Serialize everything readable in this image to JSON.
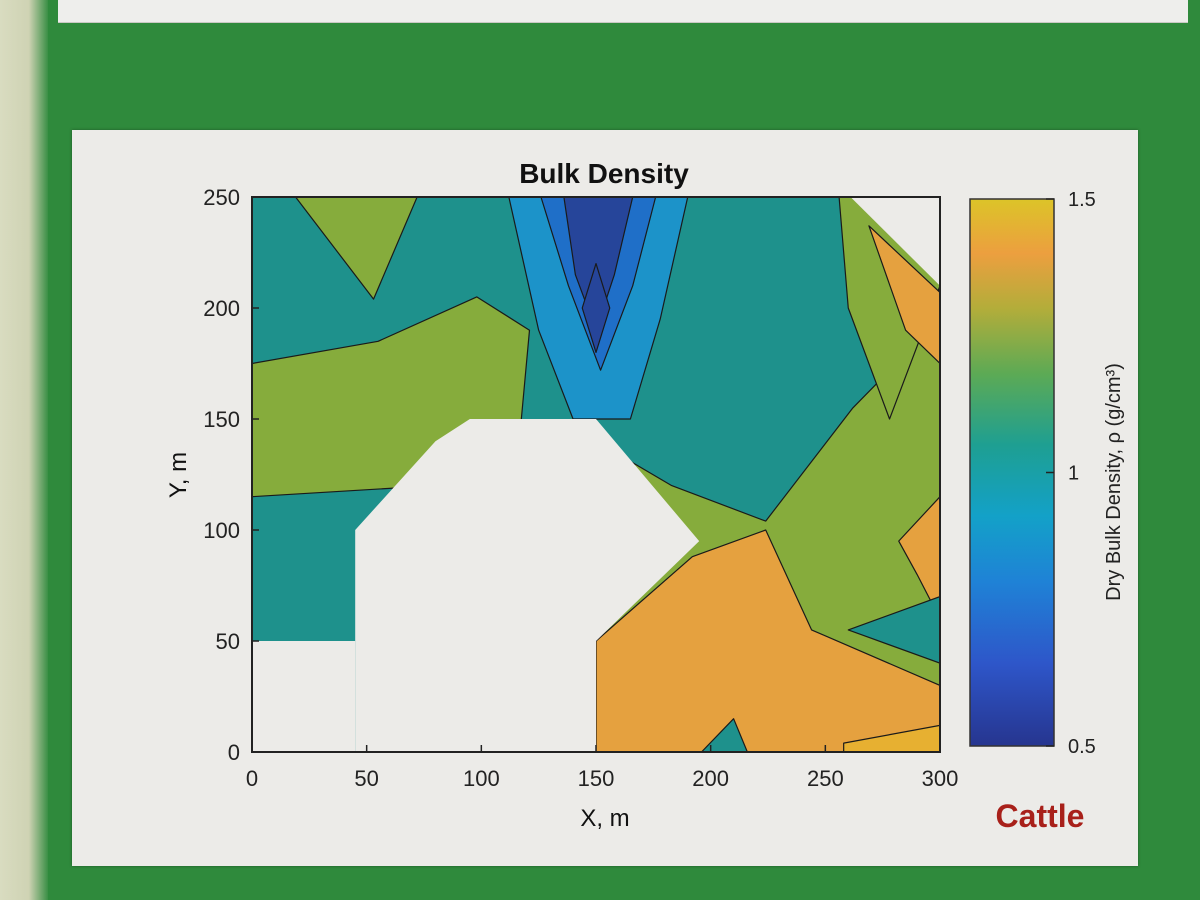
{
  "chart_data": {
    "type": "heatmap",
    "title": "Bulk Density",
    "xlabel": "X, m",
    "ylabel": "Y, m",
    "xlim": [
      0,
      300
    ],
    "ylim": [
      0,
      250
    ],
    "x_ticks": [
      0,
      50,
      100,
      150,
      200,
      250,
      300
    ],
    "y_ticks": [
      0,
      50,
      100,
      150,
      200,
      250
    ],
    "colorbar": {
      "label": "Dry Bulk Density, ρ (g/cm³)",
      "range": [
        0.5,
        1.5
      ],
      "ticks": [
        {
          "value": 0.5,
          "label": "0.5"
        },
        {
          "value": 1,
          "label": "1"
        },
        {
          "value": 1.5,
          "label": "1.5"
        }
      ]
    },
    "annotation": "Cattle",
    "levels": [
      {
        "value": 0.65,
        "color": "#26459a"
      },
      {
        "value": 0.8,
        "color": "#1f6fc8"
      },
      {
        "value": 0.9,
        "color": "#1c93c9"
      },
      {
        "value": 1.0,
        "color": "#1e918c"
      },
      {
        "value": 1.15,
        "color": "#86ac3c"
      },
      {
        "value": 1.3,
        "color": "#e5a13f"
      },
      {
        "value": 1.4,
        "color": "#e7b031"
      }
    ],
    "regions": [
      {
        "level": 1.0,
        "points": [
          [
            0,
            250
          ],
          [
            300,
            250
          ],
          [
            300,
            0
          ],
          [
            0,
            0
          ]
        ]
      },
      {
        "level": 1.15,
        "points": [
          [
            19,
            250
          ],
          [
            72,
            250
          ],
          [
            53,
            204
          ],
          [
            19,
            250
          ]
        ]
      },
      {
        "level": 1.15,
        "points": [
          [
            0,
            175
          ],
          [
            55,
            185
          ],
          [
            98,
            205
          ],
          [
            121,
            190
          ],
          [
            117,
            145
          ],
          [
            80,
            120
          ],
          [
            0,
            115
          ]
        ]
      },
      {
        "level": 1.15,
        "points": [
          [
            150,
            140
          ],
          [
            183,
            120
          ],
          [
            224,
            104
          ],
          [
            262,
            155
          ],
          [
            300,
            195
          ],
          [
            300,
            0
          ],
          [
            150,
            0
          ]
        ]
      },
      {
        "level": 1.15,
        "points": [
          [
            256,
            250
          ],
          [
            300,
            250
          ],
          [
            300,
            210
          ],
          [
            278,
            150
          ],
          [
            260,
            200
          ]
        ]
      },
      {
        "level": 1.3,
        "points": [
          [
            269,
            237
          ],
          [
            300,
            207
          ],
          [
            300,
            175
          ],
          [
            285,
            190
          ]
        ]
      },
      {
        "level": 1.3,
        "points": [
          [
            150,
            50
          ],
          [
            192,
            88
          ],
          [
            224,
            100
          ],
          [
            244,
            55
          ],
          [
            300,
            30
          ],
          [
            300,
            0
          ],
          [
            150,
            0
          ]
        ]
      },
      {
        "level": 1.3,
        "points": [
          [
            282,
            95
          ],
          [
            300,
            115
          ],
          [
            300,
            60
          ],
          [
            290,
            80
          ]
        ]
      },
      {
        "level": 1.0,
        "points": [
          [
            260,
            55
          ],
          [
            300,
            70
          ],
          [
            300,
            40
          ]
        ]
      },
      {
        "level": 1.0,
        "points": [
          [
            196,
            0
          ],
          [
            210,
            15
          ],
          [
            216,
            0
          ]
        ]
      },
      {
        "level": 1.4,
        "points": [
          [
            258,
            4
          ],
          [
            300,
            12
          ],
          [
            300,
            0
          ],
          [
            258,
            0
          ]
        ]
      },
      {
        "level": 0.9,
        "points": [
          [
            112,
            250
          ],
          [
            190,
            250
          ],
          [
            178,
            195
          ],
          [
            165,
            150
          ],
          [
            140,
            150
          ],
          [
            125,
            190
          ],
          [
            112,
            250
          ]
        ]
      },
      {
        "level": 0.8,
        "points": [
          [
            126,
            250
          ],
          [
            176,
            250
          ],
          [
            166,
            210
          ],
          [
            152,
            172
          ],
          [
            138,
            210
          ],
          [
            126,
            250
          ]
        ]
      },
      {
        "level": 0.65,
        "points": [
          [
            136,
            250
          ],
          [
            166,
            250
          ],
          [
            158,
            215
          ],
          [
            150,
            190
          ],
          [
            141,
            215
          ],
          [
            136,
            250
          ]
        ]
      },
      {
        "level": 0.65,
        "points": [
          [
            150,
            220
          ],
          [
            156,
            200
          ],
          [
            150,
            180
          ],
          [
            144,
            200
          ]
        ]
      }
    ],
    "masks": [
      {
        "points": [
          [
            45,
            95
          ],
          [
            45,
            100
          ],
          [
            80,
            140
          ],
          [
            95,
            150
          ],
          [
            150,
            150
          ],
          [
            195,
            95
          ],
          [
            150,
            50
          ],
          [
            150,
            0
          ],
          [
            45,
            0
          ]
        ]
      },
      {
        "points": [
          [
            0,
            50
          ],
          [
            45,
            50
          ],
          [
            45,
            0
          ],
          [
            0,
            0
          ]
        ]
      },
      {
        "points": [
          [
            261,
            250
          ],
          [
            300,
            250
          ],
          [
            300,
            210
          ]
        ]
      }
    ]
  }
}
